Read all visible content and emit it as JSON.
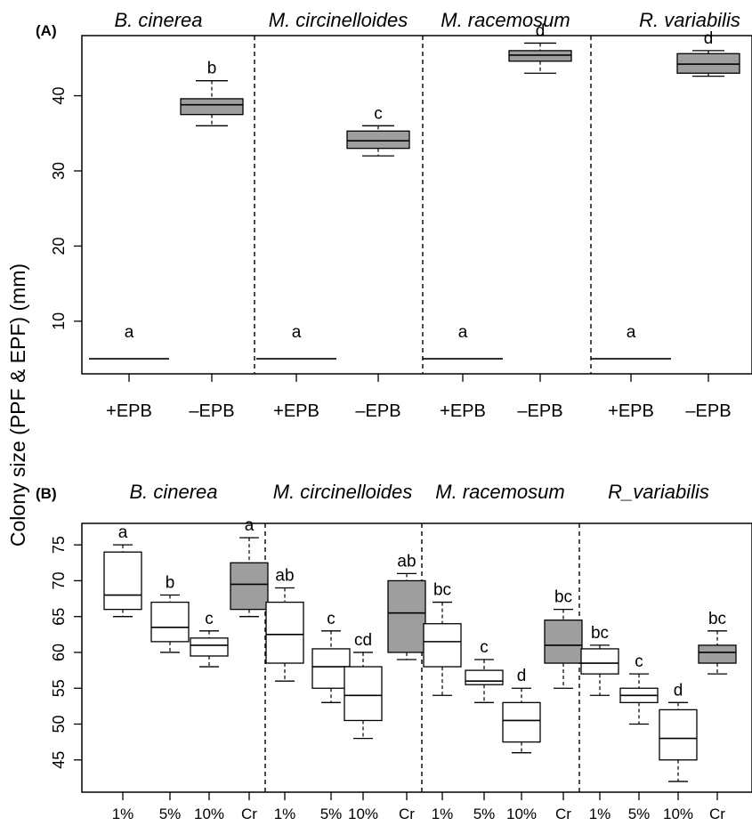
{
  "figure": {
    "ylabel": "Colony size (PPF & EPF) (mm)",
    "colors": {
      "filled_box": "#9e9e9e",
      "open_box": "#ffffff",
      "line": "#000000"
    }
  },
  "chart_data": [
    {
      "type": "boxplot",
      "panel_label": "(A)",
      "groups": [
        "B. cinerea",
        "M. circinelloides",
        "M. racemosum",
        "R. variabilis"
      ],
      "categories": [
        "+EPB",
        "–EPB"
      ],
      "yticks": [
        10,
        20,
        30,
        40
      ],
      "ylim": [
        3,
        48
      ],
      "grid": false,
      "boxes": [
        {
          "group": "B. cinerea",
          "category": "+EPB",
          "whisker_low": 5,
          "q1": 5,
          "median": 5,
          "q3": 5,
          "whisker_high": 5,
          "letter": "a",
          "filled": false
        },
        {
          "group": "B. cinerea",
          "category": "–EPB",
          "whisker_low": 36,
          "q1": 37.5,
          "median": 38.8,
          "q3": 39.6,
          "whisker_high": 42,
          "letter": "b",
          "filled": true
        },
        {
          "group": "M. circinelloides",
          "category": "+EPB",
          "whisker_low": 5,
          "q1": 5,
          "median": 5,
          "q3": 5,
          "whisker_high": 5,
          "letter": "a",
          "filled": false
        },
        {
          "group": "M. circinelloides",
          "category": "–EPB",
          "whisker_low": 32,
          "q1": 33,
          "median": 34,
          "q3": 35.3,
          "whisker_high": 36,
          "letter": "c",
          "filled": true
        },
        {
          "group": "M. racemosum",
          "category": "+EPB",
          "whisker_low": 5,
          "q1": 5,
          "median": 5,
          "q3": 5,
          "whisker_high": 5,
          "letter": "a",
          "filled": false
        },
        {
          "group": "M. racemosum",
          "category": "–EPB",
          "whisker_low": 43,
          "q1": 44.6,
          "median": 45.4,
          "q3": 46,
          "whisker_high": 47,
          "letter": "d",
          "filled": true
        },
        {
          "group": "R. variabilis",
          "category": "+EPB",
          "whisker_low": 5,
          "q1": 5,
          "median": 5,
          "q3": 5,
          "whisker_high": 5,
          "letter": "a",
          "filled": false
        },
        {
          "group": "R. variabilis",
          "category": "–EPB",
          "whisker_low": 42.6,
          "q1": 43,
          "median": 44.2,
          "q3": 45.6,
          "whisker_high": 46,
          "letter": "d",
          "filled": true
        }
      ]
    },
    {
      "type": "boxplot",
      "panel_label": "(B)",
      "groups": [
        "B. cinerea",
        "M. circinelloides",
        "M. racemosum",
        "R_variabilis"
      ],
      "categories": [
        "1%",
        "5%",
        "10%",
        "Cr"
      ],
      "yticks": [
        45,
        50,
        55,
        60,
        65,
        70,
        75
      ],
      "ylim": [
        40.5,
        78
      ],
      "grid": false,
      "boxes": [
        {
          "group": "B. cinerea",
          "category": "1%",
          "whisker_low": 65,
          "q1": 66,
          "median": 68,
          "q3": 74,
          "whisker_high": 75,
          "letter": "a",
          "filled": false
        },
        {
          "group": "B. cinerea",
          "category": "5%",
          "whisker_low": 60,
          "q1": 61.5,
          "median": 63.5,
          "q3": 67,
          "whisker_high": 68,
          "letter": "b",
          "filled": false
        },
        {
          "group": "B. cinerea",
          "category": "10%",
          "whisker_low": 58,
          "q1": 59.5,
          "median": 61,
          "q3": 62,
          "whisker_high": 63,
          "letter": "c",
          "filled": false
        },
        {
          "group": "B. cinerea",
          "category": "Cr",
          "whisker_low": 65,
          "q1": 66,
          "median": 69.5,
          "q3": 72.5,
          "whisker_high": 76,
          "letter": "a",
          "filled": true
        },
        {
          "group": "M. circinelloides",
          "category": "1%",
          "whisker_low": 56,
          "q1": 58.5,
          "median": 62.5,
          "q3": 67,
          "whisker_high": 69,
          "letter": "ab",
          "filled": false
        },
        {
          "group": "M. circinelloides",
          "category": "5%",
          "whisker_low": 53,
          "q1": 55,
          "median": 58,
          "q3": 60.5,
          "whisker_high": 63,
          "letter": "c",
          "filled": false
        },
        {
          "group": "M. circinelloides",
          "category": "10%",
          "whisker_low": 48,
          "q1": 50.5,
          "median": 54,
          "q3": 58,
          "whisker_high": 60,
          "letter": "cd",
          "filled": false
        },
        {
          "group": "M. circinelloides",
          "category": "Cr",
          "whisker_low": 59,
          "q1": 60,
          "median": 65.5,
          "q3": 70,
          "whisker_high": 71,
          "letter": "ab",
          "filled": true
        },
        {
          "group": "M. racemosum",
          "category": "1%",
          "whisker_low": 54,
          "q1": 58,
          "median": 61.5,
          "q3": 64,
          "whisker_high": 67,
          "letter": "bc",
          "filled": false
        },
        {
          "group": "M. racemosum",
          "category": "5%",
          "whisker_low": 53,
          "q1": 55.5,
          "median": 56,
          "q3": 57.5,
          "whisker_high": 59,
          "letter": "c",
          "filled": false
        },
        {
          "group": "M. racemosum",
          "category": "10%",
          "whisker_low": 46,
          "q1": 47.5,
          "median": 50.5,
          "q3": 53,
          "whisker_high": 55,
          "letter": "d",
          "filled": false
        },
        {
          "group": "M. racemosum",
          "category": "Cr",
          "whisker_low": 55,
          "q1": 58.5,
          "median": 61,
          "q3": 64.5,
          "whisker_high": 66,
          "letter": "bc",
          "filled": true
        },
        {
          "group": "R_variabilis",
          "category": "1%",
          "whisker_low": 54,
          "q1": 57,
          "median": 58.5,
          "q3": 60.5,
          "whisker_high": 61,
          "letter": "bc",
          "filled": false
        },
        {
          "group": "R_variabilis",
          "category": "5%",
          "whisker_low": 50,
          "q1": 53,
          "median": 54,
          "q3": 55,
          "whisker_high": 57,
          "letter": "c",
          "filled": false
        },
        {
          "group": "R_variabilis",
          "category": "10%",
          "whisker_low": 42,
          "q1": 45,
          "median": 48,
          "q3": 52,
          "whisker_high": 53,
          "letter": "d",
          "filled": false
        },
        {
          "group": "R_variabilis",
          "category": "Cr",
          "whisker_low": 57,
          "q1": 58.5,
          "median": 60,
          "q3": 61,
          "whisker_high": 63,
          "letter": "bc",
          "filled": true
        }
      ]
    }
  ]
}
